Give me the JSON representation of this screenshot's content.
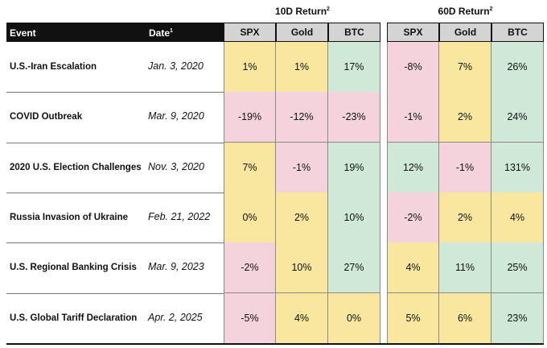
{
  "headers": {
    "event": "Event",
    "date": "Date",
    "date_sup": "1",
    "group1": "10D Return",
    "group1_sup": "2",
    "group2": "60D Return",
    "group2_sup": "2",
    "cols": [
      "SPX",
      "Gold",
      "BTC"
    ]
  },
  "colors": {
    "yellow": "#f9e79f",
    "pink": "#f5d3dc",
    "green": "#cfe8d8",
    "header_gray": "#d4d4d4"
  },
  "rows": [
    {
      "event": "U.S.-Iran Escalation",
      "date": "Jan. 3, 2020",
      "r10": [
        {
          "v": "1%",
          "c": "y"
        },
        {
          "v": "1%",
          "c": "y"
        },
        {
          "v": "17%",
          "c": "g"
        }
      ],
      "r60": [
        {
          "v": "-8%",
          "c": "p"
        },
        {
          "v": "7%",
          "c": "y"
        },
        {
          "v": "26%",
          "c": "g"
        }
      ]
    },
    {
      "event": "COVID Outbreak",
      "date": "Mar. 9, 2020",
      "r10": [
        {
          "v": "-19%",
          "c": "p"
        },
        {
          "v": "-12%",
          "c": "p"
        },
        {
          "v": "-23%",
          "c": "p"
        }
      ],
      "r60": [
        {
          "v": "-1%",
          "c": "p"
        },
        {
          "v": "2%",
          "c": "y"
        },
        {
          "v": "24%",
          "c": "g"
        }
      ]
    },
    {
      "event": "2020 U.S. Election Challenges",
      "date": "Nov. 3, 2020",
      "r10": [
        {
          "v": "7%",
          "c": "y"
        },
        {
          "v": "-1%",
          "c": "p"
        },
        {
          "v": "19%",
          "c": "g"
        }
      ],
      "r60": [
        {
          "v": "12%",
          "c": "g"
        },
        {
          "v": "-1%",
          "c": "p"
        },
        {
          "v": "131%",
          "c": "g"
        }
      ]
    },
    {
      "event": "Russia Invasion of Ukraine",
      "date": "Feb. 21, 2022",
      "r10": [
        {
          "v": "0%",
          "c": "y"
        },
        {
          "v": "2%",
          "c": "y"
        },
        {
          "v": "10%",
          "c": "g"
        }
      ],
      "r60": [
        {
          "v": "-2%",
          "c": "p"
        },
        {
          "v": "2%",
          "c": "y"
        },
        {
          "v": "4%",
          "c": "y"
        }
      ]
    },
    {
      "event": "U.S. Regional Banking Crisis",
      "date": "Mar. 9, 2023",
      "r10": [
        {
          "v": "-2%",
          "c": "p"
        },
        {
          "v": "10%",
          "c": "y"
        },
        {
          "v": "27%",
          "c": "g"
        }
      ],
      "r60": [
        {
          "v": "4%",
          "c": "y"
        },
        {
          "v": "11%",
          "c": "g"
        },
        {
          "v": "25%",
          "c": "g"
        }
      ]
    },
    {
      "event": "U.S. Global Tariff Declaration",
      "date": "Apr. 2, 2025",
      "r10": [
        {
          "v": "-5%",
          "c": "p"
        },
        {
          "v": "4%",
          "c": "y"
        },
        {
          "v": "0%",
          "c": "y"
        }
      ],
      "r60": [
        {
          "v": "5%",
          "c": "y"
        },
        {
          "v": "6%",
          "c": "y"
        },
        {
          "v": "23%",
          "c": "g"
        }
      ]
    }
  ]
}
